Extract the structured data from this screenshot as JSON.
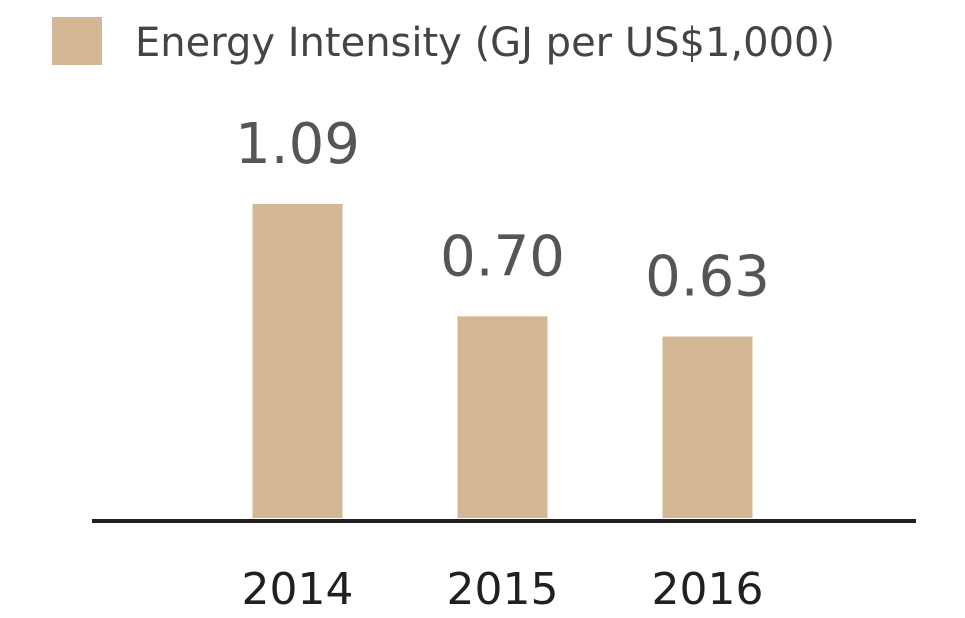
{
  "chart_data": {
    "type": "bar",
    "categories": [
      "2014",
      "2015",
      "2016"
    ],
    "series": [
      {
        "name": "Energy Intensity (GJ per US$1,000)",
        "color": "#d4b896",
        "values": [
          1.09,
          0.7,
          0.63
        ],
        "value_labels": [
          "1.09",
          "0.70",
          "0.63"
        ]
      }
    ]
  }
}
